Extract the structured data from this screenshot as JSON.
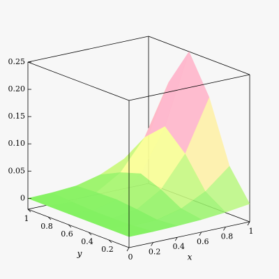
{
  "chart_data": {
    "type": "surface",
    "x": [
      0,
      0.2,
      0.4,
      0.6,
      0.8,
      1
    ],
    "y": [
      0,
      0.2,
      0.4,
      0.6,
      0.8,
      1
    ],
    "z": [
      [
        0,
        0,
        0,
        0,
        0,
        0
      ],
      [
        0,
        -0.003,
        -0.004,
        -0.004,
        -0.002,
        0.001
      ],
      [
        0.001,
        -0.002,
        0.003,
        0.007,
        0.006,
        0.004
      ],
      [
        0.003,
        0.009,
        0.03,
        0.045,
        0.033,
        0.015
      ],
      [
        0.007,
        0.031,
        0.086,
        0.122,
        0.088,
        0.035
      ],
      [
        0.013,
        0.068,
        0.18,
        0.25,
        0.18,
        0.068
      ]
    ],
    "xlabel": "x",
    "ylabel": "y",
    "xlim": [
      0,
      1
    ],
    "ylim": [
      0,
      1
    ],
    "zlim": [
      -0.02,
      0.25
    ],
    "xticks": [
      0,
      0.2,
      0.4,
      0.6,
      0.8,
      1
    ],
    "yticks": [
      0.2,
      0.4,
      0.6,
      0.8,
      1
    ],
    "zticks": [
      0,
      0.05,
      {
        "value": 0.1,
        "label": "0.10"
      },
      0.15,
      {
        "value": 0.2,
        "label": "0.20"
      },
      0.25
    ],
    "colors": [
      "#66ee55",
      "#ffff99",
      "#ff66ff"
    ]
  }
}
